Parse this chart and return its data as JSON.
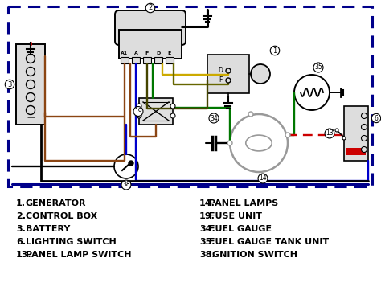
{
  "bg_color": "#ffffff",
  "legend_items_left": [
    [
      "1.",
      "GENERATOR"
    ],
    [
      "2.",
      "CONTROL BOX"
    ],
    [
      "3.",
      "BATTERY"
    ],
    [
      "6.",
      "LIGHTING SWITCH"
    ],
    [
      "13.",
      "PANEL LAMP SWITCH"
    ]
  ],
  "legend_items_right": [
    [
      "14.",
      "PANEL LAMPS"
    ],
    [
      "19.",
      "FUSE UNIT"
    ],
    [
      "34.",
      "FUEL GAUGE"
    ],
    [
      "35.",
      "FUEL GAUGE TANK UNIT"
    ],
    [
      "38.",
      "IGNITION SWITCH"
    ]
  ],
  "colors": {
    "black": "#000000",
    "brown": "#8B4513",
    "blue": "#0000CC",
    "green": "#007700",
    "red": "#CC0000",
    "yellow": "#CCAA00",
    "dkblue": "#00008B",
    "gray": "#999999",
    "lgray": "#dddddd",
    "white": "#ffffff"
  }
}
